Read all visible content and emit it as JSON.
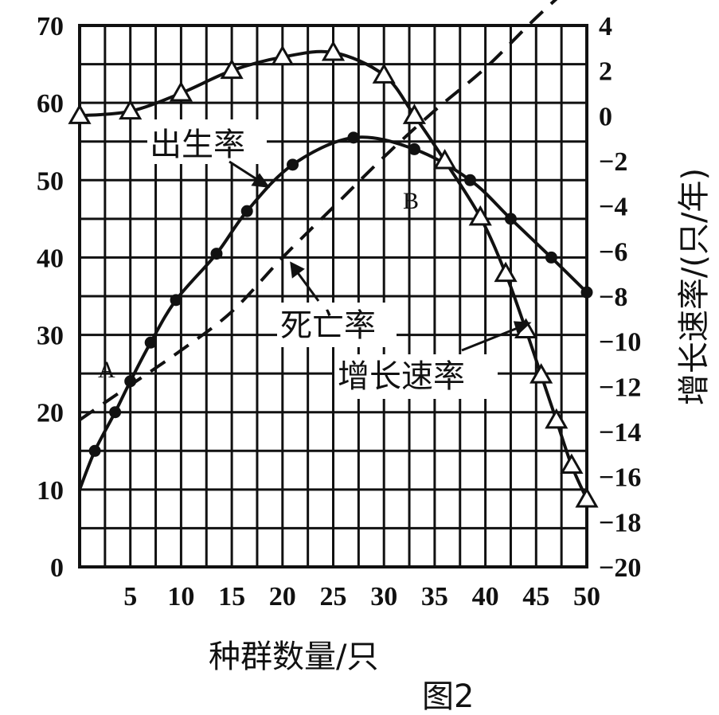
{
  "chart_data": {
    "type": "line",
    "x": [
      0,
      2,
      4,
      6,
      10,
      14,
      17,
      21,
      27,
      33,
      38,
      42,
      46,
      49
    ],
    "series": [
      {
        "name": "出生率",
        "axis": "left",
        "marker": "circle",
        "x": [
          0,
          1.5,
          3.5,
          5,
          7,
          9.5,
          13.5,
          16.5,
          21,
          27,
          33,
          38.5,
          42.5,
          46.5,
          50
        ],
        "values": [
          10,
          15,
          20,
          24,
          29,
          34.5,
          40.5,
          46,
          52,
          55.5,
          54,
          50,
          45,
          40,
          35.5
        ]
      },
      {
        "name": "死亡率",
        "axis": "left",
        "marker": "none",
        "dashed": true,
        "x": [
          0,
          5,
          10,
          15,
          20,
          25,
          30,
          35,
          40,
          45,
          50
        ],
        "values": [
          19,
          23.5,
          28,
          33,
          40,
          46.5,
          53,
          59,
          64.5,
          71,
          77
        ]
      },
      {
        "name": "增长速率",
        "axis": "right",
        "marker": "triangle",
        "x": [
          0,
          5,
          10,
          15,
          20,
          25,
          30,
          33,
          36,
          39.5,
          42,
          44,
          45.5,
          47,
          48.5,
          50
        ],
        "values": [
          0,
          0.2,
          1,
          2,
          2.6,
          2.8,
          1.8,
          0,
          -2,
          -4.5,
          -7,
          -9.5,
          -11.5,
          -13.5,
          -15.5,
          -17
        ]
      }
    ],
    "xlabel": "种群数量/只",
    "ylabel": "",
    "y2label": "增长速率/(只/年)",
    "xlim": [
      0,
      50
    ],
    "ylim": [
      0,
      70
    ],
    "y2lim": [
      -20,
      4
    ],
    "xticks": [
      "5",
      "10",
      "15",
      "20",
      "25",
      "30",
      "35",
      "40",
      "45",
      "50"
    ],
    "yticks": [
      "0",
      "10",
      "20",
      "30",
      "40",
      "50",
      "60",
      "70"
    ],
    "y2ticks": [
      "4",
      "2",
      "0",
      "-2",
      "-4",
      "-6",
      "-8",
      "-10",
      "-12",
      "-14",
      "-16",
      "-18",
      "-20"
    ],
    "annotations": [
      {
        "text": "出生率"
      },
      {
        "text": "死亡率"
      },
      {
        "text": "增长速率"
      },
      {
        "text": "A"
      },
      {
        "text": "B"
      }
    ],
    "caption": "图2",
    "grid": true
  }
}
